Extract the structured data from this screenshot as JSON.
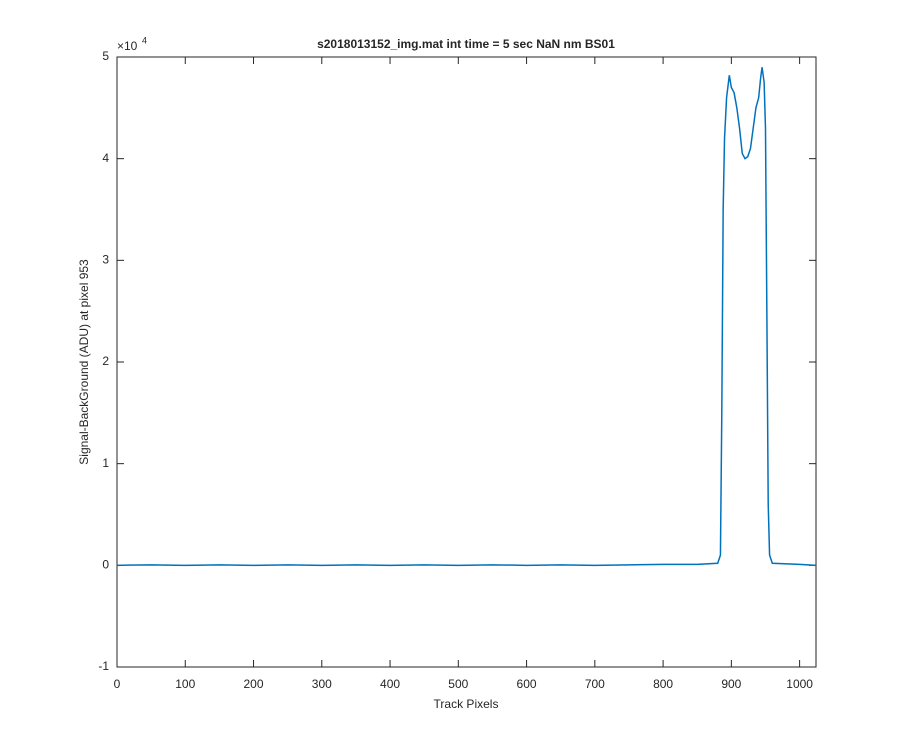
{
  "chart_data": {
    "type": "line",
    "title": "s2018013152_img.mat int time = 5 sec  NaN nm BS01",
    "x_label": "Track Pixels",
    "y_label": "Signal-BackGround (ADU) at pixel 953",
    "y_multiplier": "×10",
    "y_multiplier_exponent": "4",
    "x": [
      0,
      50,
      100,
      150,
      200,
      250,
      300,
      350,
      400,
      450,
      500,
      550,
      600,
      650,
      700,
      750,
      800,
      850,
      880,
      884,
      886,
      888,
      890,
      893,
      897,
      900,
      904,
      908,
      912,
      916,
      920,
      924,
      928,
      932,
      936,
      940,
      943,
      945,
      948,
      950,
      952,
      954,
      956,
      960,
      1000,
      1024
    ],
    "series": [
      {
        "color": "#0072bd",
        "values": [
          0.0,
          0.005,
          0.0,
          0.005,
          0.0,
          0.005,
          0.0,
          0.005,
          0.0,
          0.005,
          0.0,
          0.005,
          0.0,
          0.005,
          0.0,
          0.005,
          0.01,
          0.01,
          0.02,
          0.1,
          1.5,
          3.5,
          4.2,
          4.6,
          4.82,
          4.7,
          4.65,
          4.5,
          4.3,
          4.05,
          4.0,
          4.02,
          4.1,
          4.3,
          4.5,
          4.6,
          4.8,
          4.9,
          4.75,
          4.3,
          2.5,
          0.6,
          0.1,
          0.02,
          0.01,
          0.0
        ]
      }
    ],
    "xlim": [
      0,
      1024
    ],
    "ylim": [
      -1,
      5
    ],
    "xticks": [
      0,
      100,
      200,
      300,
      400,
      500,
      600,
      700,
      800,
      900,
      1000
    ],
    "yticks": [
      -1,
      0,
      1,
      2,
      3,
      4,
      5
    ],
    "grid": false
  }
}
